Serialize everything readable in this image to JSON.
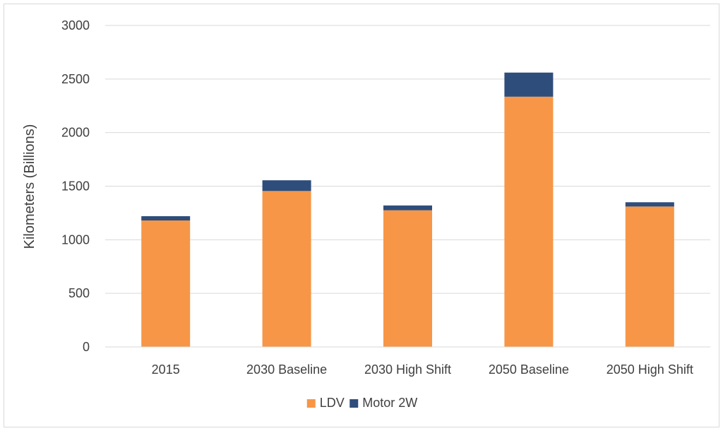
{
  "chart_data": {
    "type": "bar",
    "stacked": true,
    "title": "",
    "xlabel": "",
    "ylabel": "Kilometers (Billions)",
    "ylim": [
      0,
      3000
    ],
    "yticks": [
      0,
      500,
      1000,
      1500,
      2000,
      2500,
      3000
    ],
    "grid": true,
    "legend_position": "bottom",
    "categories": [
      "2015",
      "2030 Baseline",
      "2030 High Shift",
      "2050 Baseline",
      "2050 High Shift"
    ],
    "series": [
      {
        "name": "LDV",
        "color": "#F79646",
        "values": [
          1180,
          1455,
          1275,
          2335,
          1310
        ]
      },
      {
        "name": "Motor 2W",
        "color": "#2E4D7B",
        "values": [
          40,
          100,
          45,
          225,
          40
        ]
      }
    ]
  }
}
